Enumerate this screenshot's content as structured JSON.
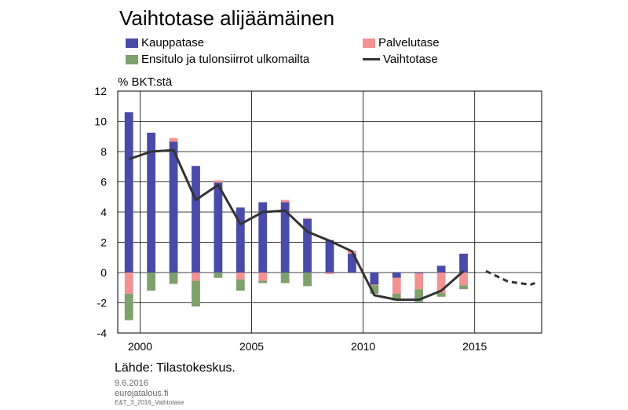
{
  "title": "Vaihtotase alijäämäinen",
  "legend": [
    {
      "label": "Kauppatase",
      "color": "#4a4aa8",
      "kind": "bar"
    },
    {
      "label": "Palvelutase",
      "color": "#f19393",
      "kind": "bar"
    },
    {
      "label": "Ensitulo ja tulonsiirrot ulkomailta",
      "color": "#7ea06c",
      "kind": "bar"
    },
    {
      "label": "Vaihtotase",
      "color": "#333333",
      "kind": "line"
    }
  ],
  "unit_label": "% BKT:stä",
  "source": "Lähde:  Tilastokeskus.",
  "date": "9.6.2016",
  "site": "eurojatalous.fi",
  "code": "E&T_3_2016_Vaihtotase",
  "chart_data": {
    "type": "bar",
    "title": "Vaihtotase alijäämäinen",
    "ylabel": "% BKT:stä",
    "ylim": [
      -4,
      12
    ],
    "yticks": [
      -4,
      -2,
      0,
      2,
      4,
      6,
      8,
      10,
      12
    ],
    "xticks": [
      "2000",
      "2005",
      "2010",
      "2015"
    ],
    "xtick_years": [
      2000,
      2005,
      2010,
      2015
    ],
    "x_range": [
      1999,
      2018
    ],
    "years": [
      1999,
      2000,
      2001,
      2002,
      2003,
      2004,
      2005,
      2006,
      2007,
      2008,
      2009,
      2010,
      2011,
      2012,
      2013,
      2014,
      2015
    ],
    "grid": true,
    "series": [
      {
        "name": "Kauppatase",
        "color": "#4a4aa8",
        "values": [
          10.6,
          9.25,
          8.65,
          7.05,
          5.95,
          4.3,
          4.65,
          4.65,
          3.55,
          2.15,
          1.25,
          -0.8,
          -0.35,
          -0.05,
          0.45,
          1.25,
          null
        ]
      },
      {
        "name": "Palvelutase",
        "color": "#f19393",
        "values": [
          -1.4,
          0.0,
          0.25,
          -0.55,
          0.15,
          -0.45,
          -0.55,
          0.15,
          0.05,
          -0.1,
          0.2,
          -0.05,
          -1.05,
          -1.05,
          -1.35,
          -0.85,
          null
        ]
      },
      {
        "name": "Ensitulo ja tulonsiirrot ulkomailta",
        "color": "#7ea06c",
        "values": [
          -1.75,
          -1.2,
          -0.75,
          -1.7,
          -0.35,
          -0.75,
          -0.15,
          -0.7,
          -0.9,
          0.0,
          0.0,
          -0.55,
          -0.45,
          -0.85,
          -0.25,
          -0.25,
          null
        ]
      },
      {
        "name": "Vaihtotase",
        "color": "#333333",
        "kind": "line",
        "values": [
          7.5,
          8.0,
          8.1,
          4.8,
          5.8,
          3.2,
          4.0,
          4.1,
          2.7,
          2.1,
          1.4,
          -1.5,
          -1.8,
          -1.8,
          -1.2,
          0.1,
          -0.6
        ],
        "forecast_values": [
          0.1,
          -0.6,
          -0.8,
          -0.7
        ],
        "forecast_years": [
          2015,
          2016,
          2017,
          2018
        ]
      }
    ]
  }
}
